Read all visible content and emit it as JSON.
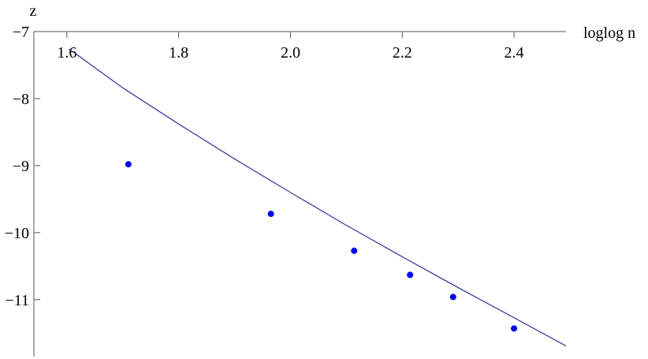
{
  "chart_data": {
    "type": "line",
    "x_label": "loglog n",
    "y_label": "z",
    "xlim": [
      1.541,
      2.493
    ],
    "ylim": [
      -11.85,
      -7
    ],
    "xticks": [
      {
        "value": 1.6,
        "label": "1.6"
      },
      {
        "value": 1.8,
        "label": "1.8"
      },
      {
        "value": 2.0,
        "label": "2.0"
      },
      {
        "value": 2.2,
        "label": "2.2"
      },
      {
        "value": 2.4,
        "label": "2.4"
      }
    ],
    "yticks": [
      {
        "value": -7,
        "label": "−7"
      },
      {
        "value": -8,
        "label": "−8"
      },
      {
        "value": -9,
        "label": "−9"
      },
      {
        "value": -10,
        "label": "−10"
      },
      {
        "value": -11,
        "label": "−11"
      }
    ],
    "series": [
      {
        "style": "line",
        "color": "#3d3d9a",
        "x": [
          1.604,
          1.7,
          1.8,
          1.9,
          2.0,
          2.1,
          2.2,
          2.3,
          2.4,
          2.493
        ],
        "values": [
          -7.26,
          -7.84,
          -8.38,
          -8.9,
          -9.4,
          -9.89,
          -10.36,
          -10.82,
          -11.27,
          -11.69
        ]
      },
      {
        "style": "markers",
        "color": "#0000ee",
        "x": [
          1.71,
          1.965,
          2.114,
          2.214,
          2.291,
          2.4
        ],
        "values": [
          -8.98,
          -9.72,
          -10.27,
          -10.63,
          -10.96,
          -11.43
        ]
      }
    ]
  }
}
